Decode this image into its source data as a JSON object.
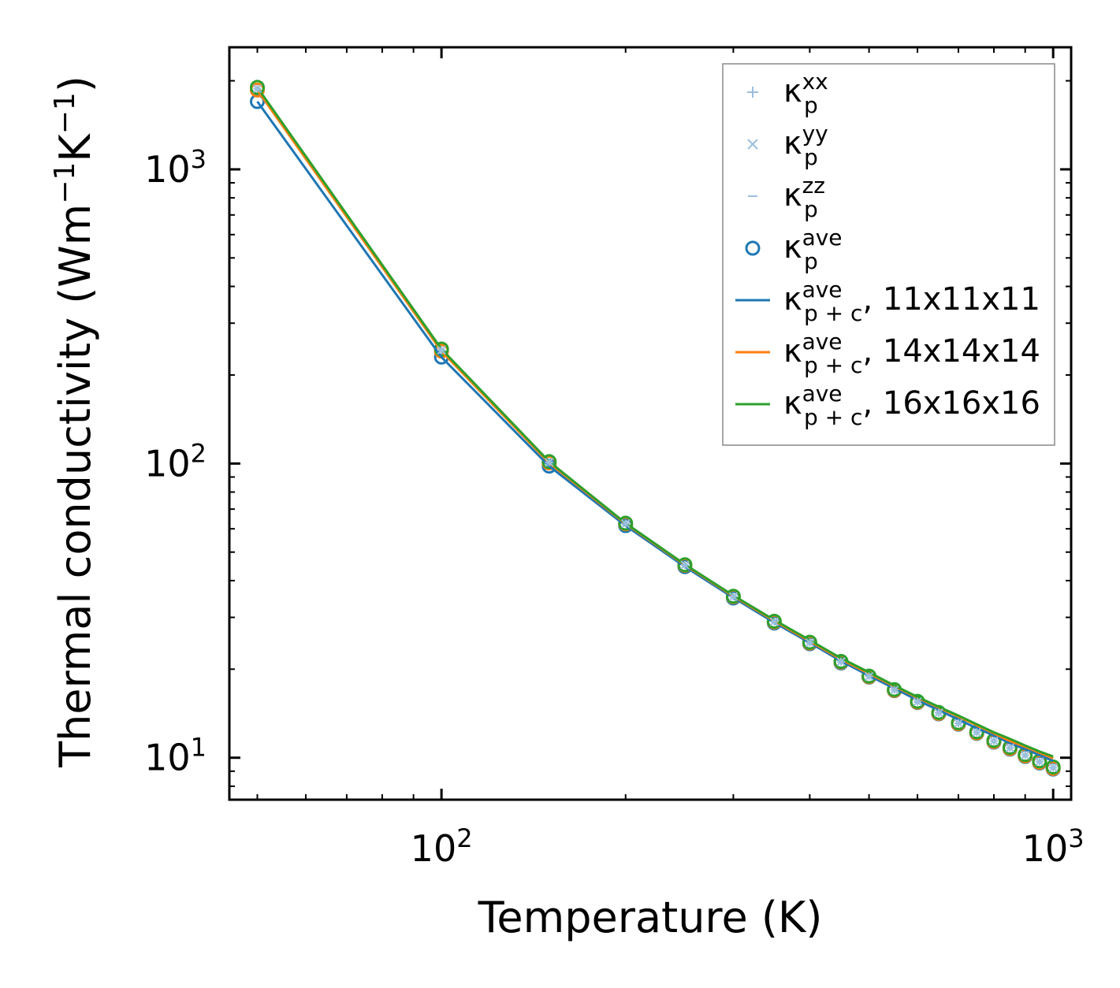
{
  "chart_data": {
    "type": "line",
    "xlabel": "Temperature (K)",
    "ylabel": {
      "main": "Thermal conductivity (Wm",
      "sup1": "−1",
      "mid": "K",
      "sup2": "−1",
      "close": ")"
    },
    "xscale": "log",
    "yscale": "log",
    "xlim": [
      45,
      1070
    ],
    "ylim": [
      7.2,
      2600
    ],
    "x_ticks": [
      {
        "value": 100,
        "base": "10",
        "exp": "2"
      },
      {
        "value": 1000,
        "base": "10",
        "exp": "3"
      }
    ],
    "y_ticks": [
      {
        "value": 10,
        "base": "10",
        "exp": "1"
      },
      {
        "value": 100,
        "base": "10",
        "exp": "2"
      },
      {
        "value": 1000,
        "base": "10",
        "exp": "3"
      }
    ],
    "temperatures": [
      50,
      100,
      150,
      200,
      250,
      300,
      350,
      400,
      450,
      500,
      550,
      600,
      650,
      700,
      750,
      800,
      850,
      900,
      950,
      1000
    ],
    "legend_position": "top-right",
    "series": [
      {
        "name": "kp_xx",
        "kind": "plus-marker",
        "color": "#9bbfdc",
        "legend_sup": "xx",
        "legend_sub": "p",
        "legend_suffix": "",
        "values": [
          1880,
          243,
          101,
          62.5,
          45.2,
          35.3,
          29.0,
          24.6,
          21.2,
          18.9,
          17.0,
          15.5,
          14.2,
          13.1,
          12.2,
          11.4,
          10.8,
          10.2,
          9.7,
          9.25
        ]
      },
      {
        "name": "kp_yy",
        "kind": "x-marker",
        "color": "#9bbfdc",
        "legend_sup": "yy",
        "legend_sub": "p",
        "legend_suffix": "",
        "values": [
          1880,
          243,
          101,
          62.5,
          45.2,
          35.3,
          29.0,
          24.6,
          21.2,
          18.9,
          17.0,
          15.5,
          14.2,
          13.1,
          12.2,
          11.4,
          10.8,
          10.2,
          9.7,
          9.25
        ]
      },
      {
        "name": "kp_zz",
        "kind": "dash-marker",
        "color": "#9bbfdc",
        "legend_sup": "zz",
        "legend_sub": "p",
        "legend_suffix": "",
        "values": [
          1880,
          243,
          101,
          62.5,
          45.2,
          35.3,
          29.0,
          24.6,
          21.2,
          18.9,
          17.0,
          15.5,
          14.2,
          13.1,
          12.2,
          11.4,
          10.8,
          10.2,
          9.7,
          9.25
        ]
      },
      {
        "name": "kp_ave_11",
        "kind": "circle-marker",
        "color": "#1f77b4",
        "legend_sup": "ave",
        "legend_sub": "p",
        "legend_suffix": "",
        "values": [
          1700,
          230,
          98,
          61.5,
          44.6,
          34.9,
          28.7,
          24.4,
          21.0,
          18.8,
          16.9,
          15.4,
          14.1,
          13.0,
          12.1,
          11.3,
          10.7,
          10.1,
          9.6,
          9.15
        ]
      },
      {
        "name": "kp_ave_14",
        "kind": "circle-marker",
        "color": "#ff7f0e",
        "legend": false,
        "values": [
          1860,
          241,
          100.5,
          62.4,
          45.1,
          35.25,
          28.95,
          24.55,
          21.15,
          18.85,
          16.95,
          15.45,
          14.15,
          13.05,
          12.15,
          11.35,
          10.75,
          10.15,
          9.65,
          9.2
        ]
      },
      {
        "name": "kp_ave_16",
        "kind": "circle-marker",
        "color": "#2ca02c",
        "legend": false,
        "values": [
          1900,
          245,
          101.5,
          62.7,
          45.3,
          35.4,
          29.1,
          24.7,
          21.25,
          18.95,
          17.05,
          15.55,
          14.25,
          13.15,
          12.25,
          11.45,
          10.85,
          10.25,
          9.75,
          9.3
        ]
      },
      {
        "name": "kpc_ave_11",
        "kind": "line",
        "color": "#1f77b4",
        "legend_sup": "ave",
        "legend_sub": "p + c",
        "legend_suffix": ", 11x11x11",
        "values": [
          1700,
          230,
          98,
          61.5,
          44.6,
          35.0,
          28.8,
          24.6,
          21.3,
          19.0,
          17.2,
          15.7,
          14.5,
          13.5,
          12.6,
          11.9,
          11.2,
          10.7,
          10.2,
          9.75
        ]
      },
      {
        "name": "kpc_ave_14",
        "kind": "line",
        "color": "#ff7f0e",
        "legend_sup": "ave",
        "legend_sub": "p + c",
        "legend_suffix": ", 14x14x14",
        "values": [
          1860,
          241,
          100.5,
          62.4,
          45.2,
          35.4,
          29.2,
          24.9,
          21.6,
          19.3,
          17.5,
          16.0,
          14.8,
          13.8,
          12.9,
          12.1,
          11.4,
          10.9,
          10.4,
          9.95
        ]
      },
      {
        "name": "kpc_ave_16",
        "kind": "line",
        "color": "#2ca02c",
        "legend_sup": "ave",
        "legend_sub": "p + c",
        "legend_suffix": ", 16x16x16",
        "values": [
          1900,
          245,
          101.5,
          62.7,
          45.4,
          35.6,
          29.4,
          25.1,
          21.8,
          19.5,
          17.6,
          16.1,
          14.9,
          13.9,
          13.0,
          12.2,
          11.6,
          11.0,
          10.5,
          10.1
        ]
      }
    ]
  }
}
